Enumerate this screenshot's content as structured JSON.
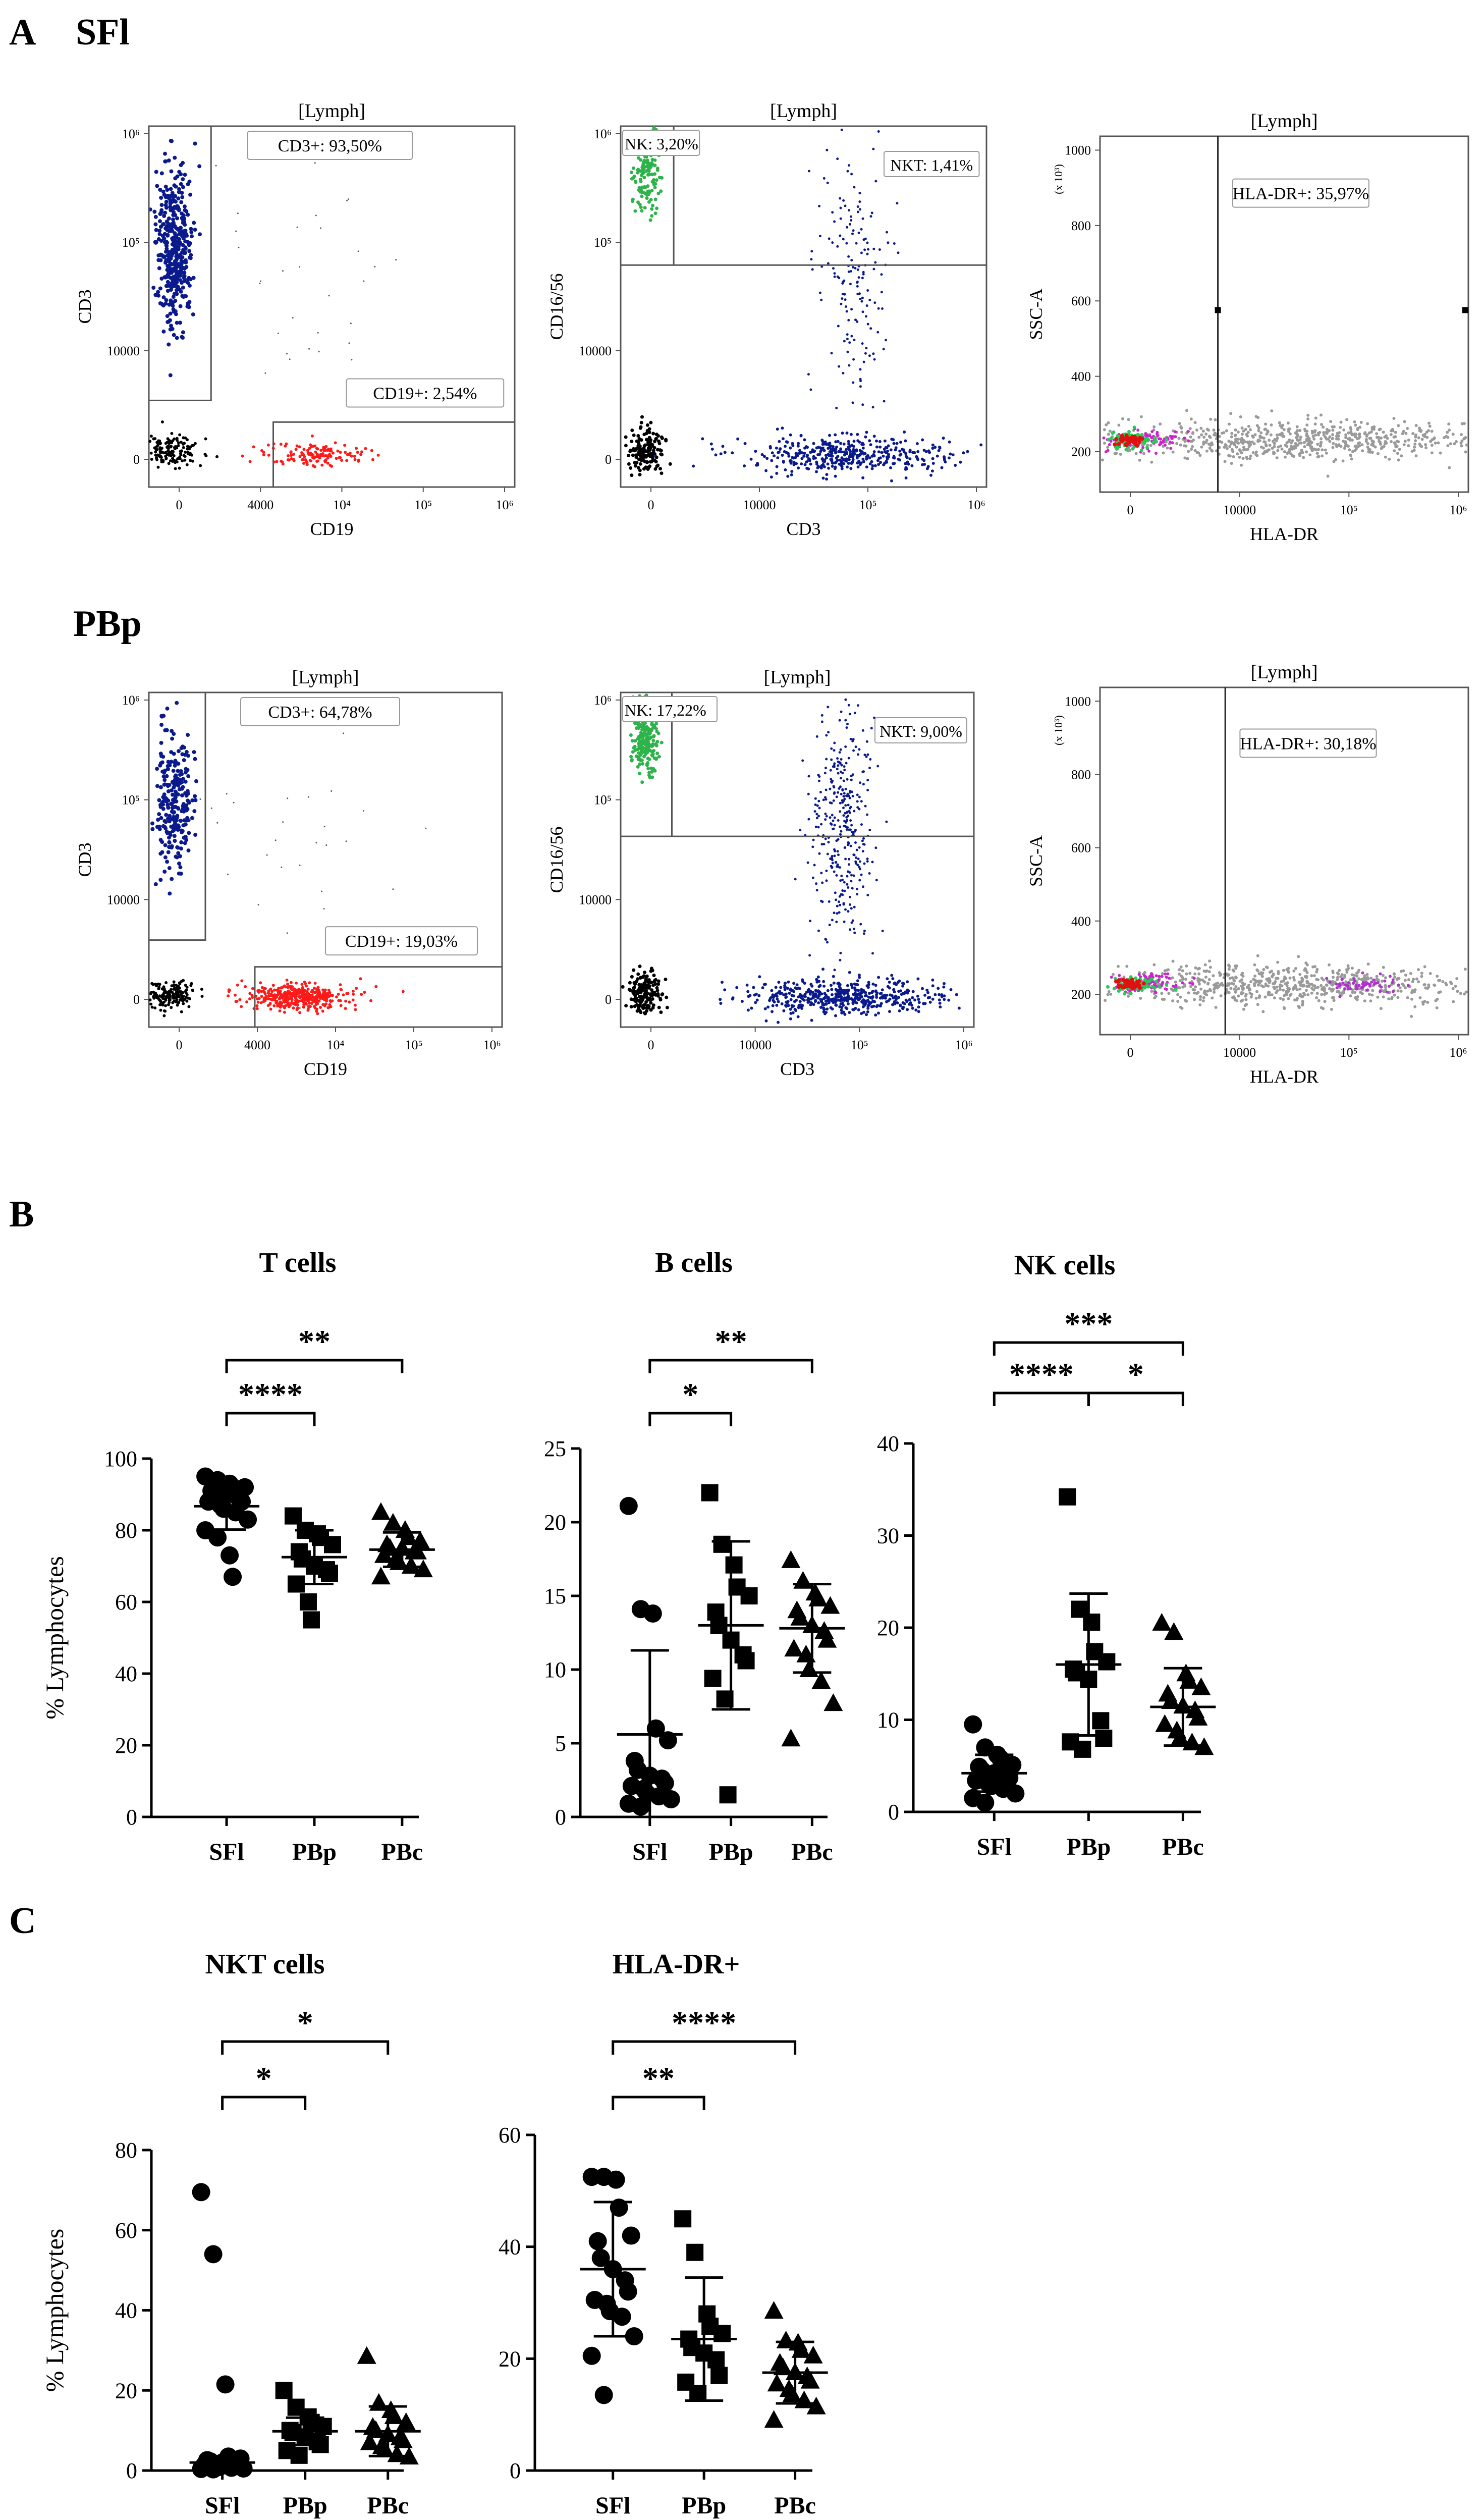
{
  "sections": {
    "A": "A",
    "B": "B",
    "C": "C"
  },
  "flow_rows": [
    {
      "label": "SFl",
      "plots": [
        {
          "gate": "[Lymph]",
          "x_axis": "CD19",
          "y_axis": "CD3",
          "x_ticks": [
            "0",
            "4000",
            "10⁴",
            "10⁵",
            "10⁶"
          ],
          "y_ticks": [
            "0",
            "10000",
            "10⁵",
            "10⁶"
          ],
          "boxes": [
            "CD3+: 93,50%",
            "CD19+: 2,54%"
          ]
        },
        {
          "gate": "[Lymph]",
          "x_axis": "CD3",
          "y_axis": "CD16/56",
          "x_ticks": [
            "0",
            "10000",
            "10⁵",
            "10⁶"
          ],
          "y_ticks": [
            "0",
            "10000",
            "10⁵",
            "10⁶"
          ],
          "boxes": [
            "NK: 3,20%",
            "NKT: 1,41%"
          ]
        },
        {
          "gate": "[Lymph]",
          "x_axis": "HLA-DR",
          "y_axis": "SSC-A",
          "y_unit": "(x 10³)",
          "x_ticks": [
            "0",
            "10000",
            "10⁵",
            "10⁶"
          ],
          "y_ticks": [
            "200",
            "400",
            "600",
            "800",
            "1000"
          ],
          "boxes": [
            "HLA-DR+: 35,97%"
          ]
        }
      ]
    },
    {
      "label": "PBp",
      "plots": [
        {
          "gate": "[Lymph]",
          "x_axis": "CD19",
          "y_axis": "CD3",
          "x_ticks": [
            "0",
            "4000",
            "10⁴",
            "10⁵",
            "10⁶"
          ],
          "y_ticks": [
            "0",
            "10000",
            "10⁵",
            "10⁶"
          ],
          "boxes": [
            "CD3+: 64,78%",
            "CD19+: 19,03%"
          ]
        },
        {
          "gate": "[Lymph]",
          "x_axis": "CD3",
          "y_axis": "CD16/56",
          "x_ticks": [
            "0",
            "10000",
            "10⁵",
            "10⁶"
          ],
          "y_ticks": [
            "0",
            "10000",
            "10⁵",
            "10⁶"
          ],
          "boxes": [
            "NK: 17,22%",
            "NKT: 9,00%"
          ]
        },
        {
          "gate": "[Lymph]",
          "x_axis": "HLA-DR",
          "y_axis": "SSC-A",
          "y_unit": "(x 10³)",
          "x_ticks": [
            "0",
            "10000",
            "10⁵",
            "10⁶"
          ],
          "y_ticks": [
            "200",
            "400",
            "600",
            "800",
            "1000"
          ],
          "boxes": [
            "HLA-DR+: 30,18%"
          ]
        }
      ]
    }
  ],
  "colors": {
    "ink": "#000000",
    "t_cells": "#0a1a8c",
    "b_cells": "#ff1a1a",
    "nk_cells": "#2db34a",
    "ssc_gray": "#9a9a9a",
    "box_bg": "#ffffff"
  },
  "chart_data": [
    {
      "type": "scatter",
      "title": "T cells",
      "ylabel": "% Lymphocytes",
      "ylim": [
        0,
        100
      ],
      "y_ticks": [
        0,
        20,
        40,
        60,
        80,
        100
      ],
      "categories": [
        "SFl",
        "PBp",
        "PBc"
      ],
      "markers": [
        "circle",
        "square",
        "triangle"
      ],
      "series": [
        {
          "group": "SFl",
          "values": [
            95,
            94,
            93,
            92,
            92,
            91,
            90,
            90,
            89,
            88,
            88,
            87,
            86,
            85,
            83,
            80,
            78,
            73,
            67
          ],
          "mean": 86.7,
          "sd": 6.5
        },
        {
          "group": "PBp",
          "values": [
            84,
            80,
            79,
            78,
            76,
            74,
            72,
            70,
            69,
            68,
            65,
            60,
            55
          ],
          "mean": 72.5,
          "sd": 7.5
        },
        {
          "group": "PBc",
          "values": [
            85,
            82,
            80,
            78,
            77,
            76,
            75,
            75,
            74,
            74,
            73,
            72,
            71,
            70,
            69,
            67
          ],
          "mean": 74.6,
          "sd": 4.8
        }
      ],
      "significance": [
        {
          "pair": [
            "SFl",
            "PBc"
          ],
          "label": "**"
        },
        {
          "pair": [
            "SFl",
            "PBp"
          ],
          "label": "****"
        }
      ]
    },
    {
      "type": "scatter",
      "title": "B cells",
      "ylabel": "",
      "ylim": [
        0,
        25
      ],
      "y_ticks": [
        0,
        5,
        10,
        15,
        20,
        25
      ],
      "categories": [
        "SFl",
        "PBp",
        "PBc"
      ],
      "markers": [
        "circle",
        "square",
        "triangle"
      ],
      "series": [
        {
          "group": "SFl",
          "values": [
            21.1,
            14.1,
            13.8,
            6.0,
            5.2,
            3.8,
            3.2,
            2.8,
            2.6,
            2.3,
            2.1,
            1.9,
            1.6,
            1.4,
            1.2,
            0.9,
            0.7
          ],
          "mean": 5.6,
          "sd": 5.7
        },
        {
          "group": "PBp",
          "values": [
            22.0,
            18.5,
            17.1,
            15.6,
            15.0,
            13.9,
            13.0,
            12.0,
            11.0,
            10.6,
            9.4,
            8.0,
            1.5
          ],
          "mean": 13.0,
          "sd": 5.7
        },
        {
          "group": "PBc",
          "values": [
            17.4,
            16.0,
            15.2,
            14.8,
            14.3,
            14.0,
            13.5,
            13.0,
            12.6,
            12.0,
            11.4,
            11.0,
            10.0,
            9.2,
            7.7,
            5.3
          ],
          "mean": 12.8,
          "sd": 3.0
        }
      ],
      "significance": [
        {
          "pair": [
            "SFl",
            "PBc"
          ],
          "label": "**"
        },
        {
          "pair": [
            "SFl",
            "PBp"
          ],
          "label": "*"
        }
      ]
    },
    {
      "type": "scatter",
      "title": "NK cells",
      "ylabel": "",
      "ylim": [
        0,
        40
      ],
      "y_ticks": [
        0,
        10,
        20,
        30,
        40
      ],
      "categories": [
        "SFl",
        "PBp",
        "PBc"
      ],
      "markers": [
        "circle",
        "square",
        "triangle"
      ],
      "series": [
        {
          "group": "SFl",
          "values": [
            9.5,
            7.0,
            6.2,
            5.8,
            5.1,
            4.9,
            4.5,
            4.2,
            4.0,
            3.7,
            3.4,
            3.1,
            2.8,
            2.5,
            2.0,
            1.5,
            1.0
          ],
          "mean": 4.2,
          "sd": 2.0
        },
        {
          "group": "PBp",
          "values": [
            34.2,
            22.0,
            20.6,
            17.4,
            16.3,
            15.5,
            15.1,
            14.4,
            9.9,
            8.0,
            7.6,
            6.8
          ],
          "mean": 16.0,
          "sd": 7.7
        },
        {
          "group": "PBc",
          "values": [
            20.5,
            19.5,
            15.0,
            14.2,
            13.5,
            12.8,
            12.0,
            11.5,
            11.0,
            10.2,
            9.5,
            8.8,
            8.0,
            7.5,
            7.0
          ],
          "mean": 11.4,
          "sd": 4.2
        }
      ],
      "significance": [
        {
          "pair": [
            "SFl",
            "PBc"
          ],
          "label": "***"
        },
        {
          "pair": [
            "SFl",
            "PBp"
          ],
          "label": "****"
        },
        {
          "pair": [
            "PBp",
            "PBc"
          ],
          "label": "*"
        }
      ]
    },
    {
      "type": "scatter",
      "title": "NKT cells",
      "ylabel": "% Lymphocytes",
      "ylim": [
        0,
        80
      ],
      "y_ticks": [
        0,
        20,
        40,
        60,
        80
      ],
      "categories": [
        "SFl",
        "PBp",
        "PBc"
      ],
      "markers": [
        "circle",
        "square",
        "triangle"
      ],
      "series": [
        {
          "group": "SFl",
          "values": [
            69.5,
            54.0,
            21.5,
            3.5,
            3.0,
            2.6,
            2.3,
            2.0,
            1.8,
            1.5,
            1.3,
            1.1,
            0.9,
            0.7,
            0.5,
            0.4,
            0.3
          ],
          "mean": 2.0,
          "sd": 0
        },
        {
          "group": "PBp",
          "values": [
            20.0,
            15.8,
            13.4,
            12.0,
            11.0,
            10.0,
            9.5,
            8.4,
            7.2,
            6.5,
            5.0,
            3.8
          ],
          "mean": 9.8,
          "sd": 3.4
        },
        {
          "group": "PBc",
          "values": [
            28.5,
            16.8,
            15.0,
            13.5,
            12.0,
            10.8,
            10.0,
            9.0,
            8.2,
            7.5,
            7.0,
            6.0,
            5.2,
            4.0,
            3.4
          ],
          "mean": 9.8,
          "sd": 6.2
        }
      ],
      "significance": [
        {
          "pair": [
            "SFl",
            "PBc"
          ],
          "label": "*"
        },
        {
          "pair": [
            "SFl",
            "PBp"
          ],
          "label": "*"
        }
      ]
    },
    {
      "type": "scatter",
      "title": "HLA-DR+",
      "ylabel": "",
      "ylim": [
        0,
        60
      ],
      "y_ticks": [
        0,
        20,
        40,
        60
      ],
      "categories": [
        "SFl",
        "PBp",
        "PBc"
      ],
      "markers": [
        "circle",
        "square",
        "triangle"
      ],
      "series": [
        {
          "group": "SFl",
          "values": [
            52.5,
            52.5,
            52.0,
            47.0,
            42.0,
            41.0,
            38.0,
            36.0,
            34.0,
            32.0,
            30.5,
            29.8,
            28.5,
            27.5,
            24.0,
            20.5,
            13.5
          ],
          "mean": 36.0,
          "sd": 12.0
        },
        {
          "group": "PBp",
          "values": [
            45.0,
            39.0,
            28.0,
            25.8,
            24.5,
            23.5,
            22.0,
            21.0,
            19.8,
            17.0,
            15.8,
            13.8
          ],
          "mean": 23.5,
          "sd": 11.0
        },
        {
          "group": "PBc",
          "values": [
            28.5,
            23.2,
            22.8,
            21.5,
            20.5,
            19.2,
            18.4,
            17.5,
            16.8,
            16.0,
            15.5,
            14.5,
            13.6,
            12.5,
            11.4,
            9.0
          ],
          "mean": 17.5,
          "sd": 5.5
        }
      ],
      "significance": [
        {
          "pair": [
            "SFl",
            "PBc"
          ],
          "label": "****"
        },
        {
          "pair": [
            "SFl",
            "PBp"
          ],
          "label": "**"
        }
      ]
    }
  ]
}
